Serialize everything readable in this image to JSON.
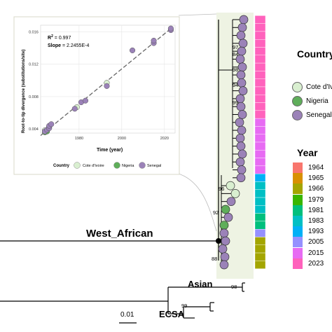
{
  "clade_labels": {
    "west_african": "West_African",
    "asian": "Asian",
    "ecsa": "ECSA"
  },
  "scale_bar": "0.01",
  "bootstrap": [
    "97",
    "84",
    "98",
    "94",
    "99",
    "96",
    "92",
    "88",
    "98",
    "99"
  ],
  "country_legend": {
    "title": "Country",
    "items": [
      {
        "label": "Cote d'Ivoire",
        "color": "#d9efd0"
      },
      {
        "label": "Nigeria",
        "color": "#5fae5a"
      },
      {
        "label": "Senegal",
        "color": "#9b82b8"
      }
    ]
  },
  "year_legend": {
    "title": "Year",
    "items": [
      {
        "label": "1964",
        "color": "#f8766d"
      },
      {
        "label": "1965",
        "color": "#d89000"
      },
      {
        "label": "1966",
        "color": "#a3a500"
      },
      {
        "label": "1979",
        "color": "#39b600"
      },
      {
        "label": "1981",
        "color": "#00bf7d"
      },
      {
        "label": "1983",
        "color": "#00bfc4"
      },
      {
        "label": "1993",
        "color": "#00b0f6"
      },
      {
        "label": "2005",
        "color": "#9590ff"
      },
      {
        "label": "2015",
        "color": "#e76bf3"
      },
      {
        "label": "2023",
        "color": "#ff62bc"
      }
    ]
  },
  "tip_years": [
    "2023",
    "2023",
    "2023",
    "2023",
    "2023",
    "2023",
    "2023",
    "2023",
    "2023",
    "2023",
    "2023",
    "2023",
    "2023",
    "2015",
    "2015",
    "2015",
    "2015",
    "2015",
    "2015",
    "2015",
    "1993",
    "1983",
    "1983",
    "1983",
    "1983",
    "1981",
    "1981",
    "2005",
    "1966",
    "1966",
    "1966",
    "1966"
  ],
  "tip_countries": [
    "Senegal",
    "Senegal",
    "Senegal",
    "Senegal",
    "Senegal",
    "Senegal",
    "Senegal",
    "Senegal",
    "Senegal",
    "Senegal",
    "Senegal",
    "Senegal",
    "Senegal",
    "Senegal",
    "Senegal",
    "Senegal",
    "Senegal",
    "Senegal",
    "Senegal",
    "Senegal",
    "Senegal",
    "Cote d'Ivoire",
    "Cote d'Ivoire",
    "Senegal",
    "Nigeria",
    "Senegal",
    "Nigeria",
    "Senegal",
    "Senegal",
    "Senegal",
    "Senegal",
    "Senegal"
  ],
  "chart_data": {
    "type": "scatter",
    "ylabel": "Root-to-tip divergence (substitutions/site)",
    "xlabel": "Time (year)",
    "xticks": [
      "1980",
      "2000",
      "2020"
    ],
    "yticks": [
      "0.004",
      "0.008",
      "0.012",
      "0.016"
    ],
    "xlim": [
      1962,
      2025
    ],
    "ylim": [
      0.0035,
      0.0168
    ],
    "r2_label": "R",
    "r2_sup": "2",
    "r2_value": " = 0.997",
    "slope_label": "Slope",
    "slope_value": " = 2.2455E-4",
    "legend_title": "Country",
    "series": [
      {
        "name": "Cote d'Ivoire",
        "color": "#d9efd0",
        "points": [
          [
            1964,
            0.00385
          ],
          [
            1966,
            0.0042
          ],
          [
            1966,
            0.0043
          ],
          [
            1979,
            0.0067
          ],
          [
            1993,
            0.0097
          ]
        ]
      },
      {
        "name": "Nigeria",
        "color": "#5fae5a",
        "points": [
          [
            1964,
            0.0036
          ],
          [
            1965,
            0.0037
          ]
        ]
      },
      {
        "name": "Senegal",
        "color": "#9b82b8",
        "points": [
          [
            1964,
            0.0037
          ],
          [
            1965,
            0.0039
          ],
          [
            1966,
            0.0041
          ],
          [
            1966,
            0.0044
          ],
          [
            1967,
            0.0046
          ],
          [
            1978,
            0.0065
          ],
          [
            1981,
            0.0073
          ],
          [
            1983,
            0.0075
          ],
          [
            1993,
            0.0093
          ],
          [
            2005,
            0.0137
          ],
          [
            2015,
            0.0146
          ],
          [
            2015,
            0.0149
          ],
          [
            2023,
            0.0162
          ],
          [
            2023,
            0.0164
          ]
        ]
      }
    ],
    "fit": [
      [
        1962,
        0.0032
      ],
      [
        2024,
        0.0166
      ]
    ]
  }
}
